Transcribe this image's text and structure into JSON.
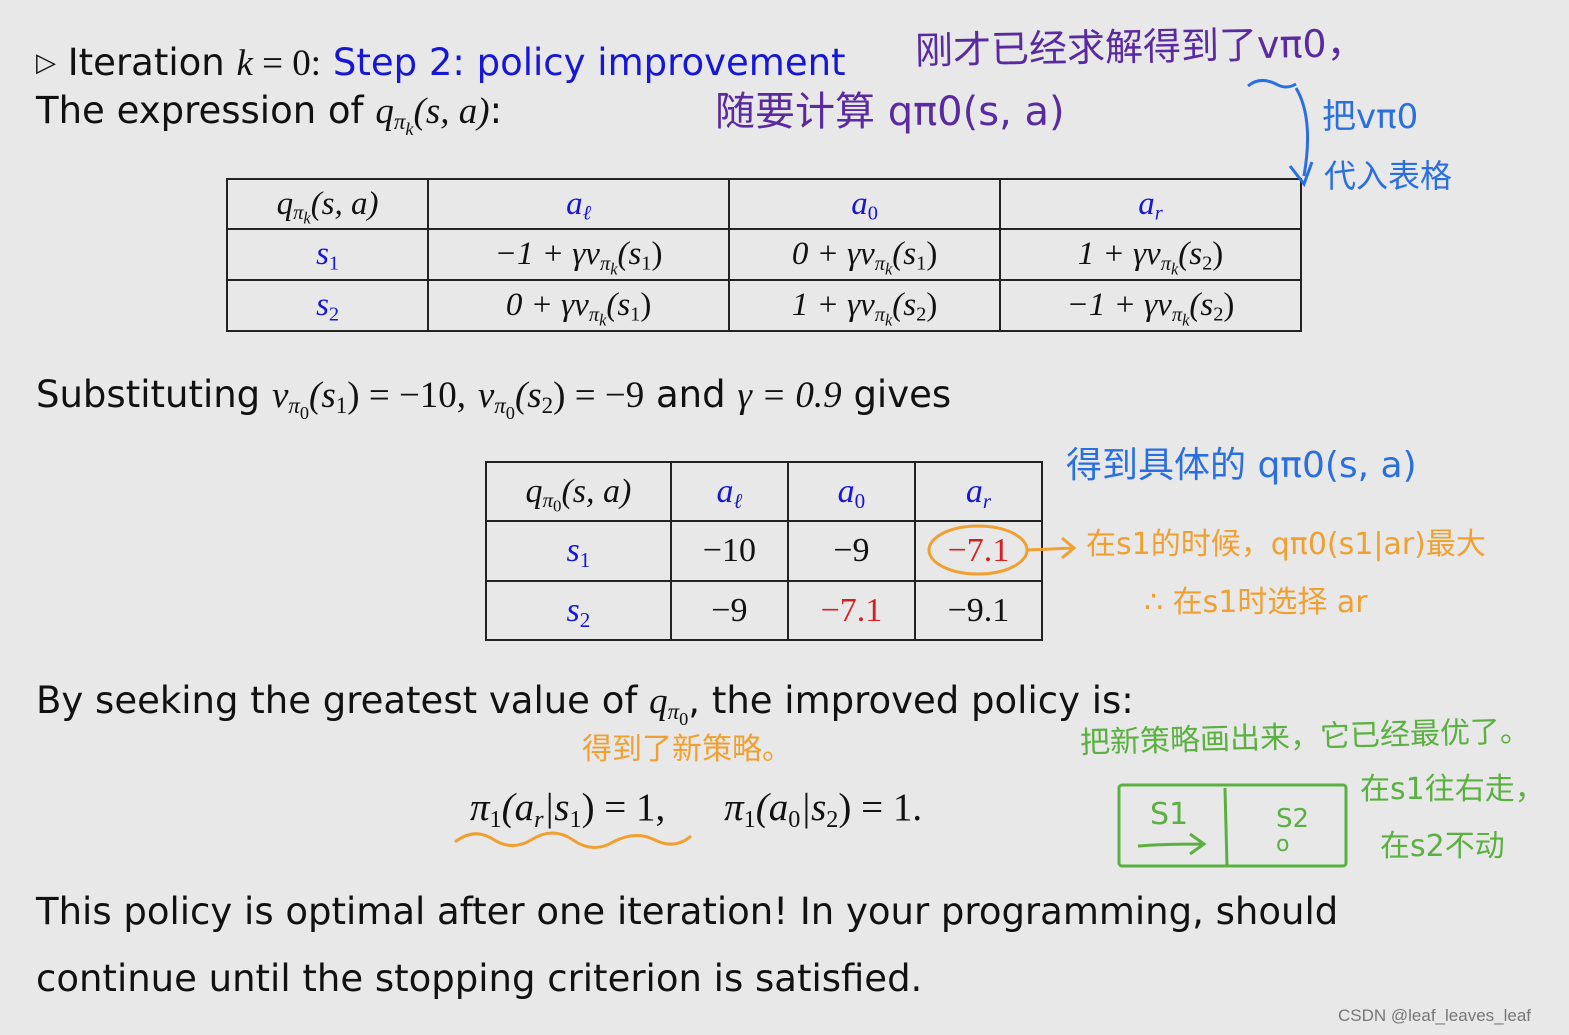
{
  "heading": {
    "marker": "▷",
    "prefix": "Iteration",
    "iter_var": "k",
    "iter_eq": " = 0:",
    "step": "Step 2: policy improvement"
  },
  "expr_line": {
    "prefix": "The expression of",
    "q": "q",
    "pi": "π",
    "k": "k",
    "args": "(s, a)",
    "colon": ":"
  },
  "table1": {
    "corner": {
      "q": "q",
      "pi": "π",
      "k": "k",
      "args": "(s, a)"
    },
    "columns": [
      {
        "var": "a",
        "sub": "ℓ"
      },
      {
        "var": "a",
        "sub": "0"
      },
      {
        "var": "a",
        "sub": "r"
      }
    ],
    "rows": [
      {
        "state": {
          "var": "s",
          "sub": "1"
        },
        "cells": [
          {
            "pre": "−1 + γv",
            "pi": "π",
            "k": "k",
            "arg": "(s",
            "argsub": "1",
            "close": ")"
          },
          {
            "pre": "0 + γv",
            "pi": "π",
            "k": "k",
            "arg": "(s",
            "argsub": "1",
            "close": ")"
          },
          {
            "pre": "1 + γv",
            "pi": "π",
            "k": "k",
            "arg": "(s",
            "argsub": "2",
            "close": ")"
          }
        ]
      },
      {
        "state": {
          "var": "s",
          "sub": "2"
        },
        "cells": [
          {
            "pre": "0 + γv",
            "pi": "π",
            "k": "k",
            "arg": "(s",
            "argsub": "1",
            "close": ")"
          },
          {
            "pre": "1 + γv",
            "pi": "π",
            "k": "k",
            "arg": "(s",
            "argsub": "2",
            "close": ")"
          },
          {
            "pre": "−1 + γv",
            "pi": "π",
            "k": "k",
            "arg": "(s",
            "argsub": "2",
            "close": ")"
          }
        ]
      }
    ]
  },
  "subst_line": {
    "prefix": "Substituting",
    "v": "v",
    "pi": "π",
    "zero": "0",
    "s": "(s",
    "s1": "1",
    "eq1": ") = −10,",
    "s2": "2",
    "eq2": ") = −9",
    "and": "and",
    "gamma": "γ = 0.9",
    "suffix": "gives"
  },
  "table2": {
    "corner": {
      "q": "q",
      "pi": "π",
      "zero": "0",
      "args": "(s, a)"
    },
    "columns": [
      {
        "var": "a",
        "sub": "ℓ"
      },
      {
        "var": "a",
        "sub": "0"
      },
      {
        "var": "a",
        "sub": "r"
      }
    ],
    "rows": [
      {
        "state": {
          "var": "s",
          "sub": "1"
        },
        "values": [
          "−10",
          "−9",
          "−7.1"
        ]
      },
      {
        "state": {
          "var": "s",
          "sub": "2"
        },
        "values": [
          "−9",
          "−7.1",
          "−9.1"
        ]
      }
    ]
  },
  "seek_line": {
    "prefix": "By seeking the greatest value of",
    "q": "q",
    "pi": "π",
    "zero": "0",
    "suffix": ", the improved policy is:"
  },
  "policy_eq": {
    "pi": "π",
    "one": "1",
    "open": "(a",
    "r": "r",
    "bar": "|s",
    "s1": "1",
    "eq1": ") = 1,",
    "zero": "0",
    "s2": "2",
    "eq2": ") = 1."
  },
  "conclusion": {
    "line1": "This policy is optimal after one iteration! In your programming, should",
    "line2": "continue until the stopping criterion is satisfied."
  },
  "annotations": {
    "purple_1": "刚才已经求解得到了vπ0，",
    "purple_2": "随要计算 qπ0(s, a)",
    "blue_1": "把vπ0",
    "blue_2": "代入表格",
    "blue_3": "得到具体的 qπ0(s, a)",
    "orange_1": "在s1的时候，qπ0(s1|ar)最大",
    "orange_2": "∴ 在s1时选择 ar",
    "orange_3": "得到了新策略。",
    "green_1": "把新策略画出来，它已经最优了。",
    "green_2": "在s1往右走，",
    "green_3": "在s2不动",
    "grid_s1": "S1",
    "grid_s2": "S2",
    "grid_stay": "o"
  },
  "watermark": "CSDN @leaf_leaves_leaf",
  "colors": {
    "blue_text": "#1616d6",
    "red_value": "#d42020",
    "annot_purple": "#5a2aa0",
    "annot_blue": "#2a6fe0",
    "annot_orange": "#f0a030",
    "annot_green": "#5ab040"
  }
}
